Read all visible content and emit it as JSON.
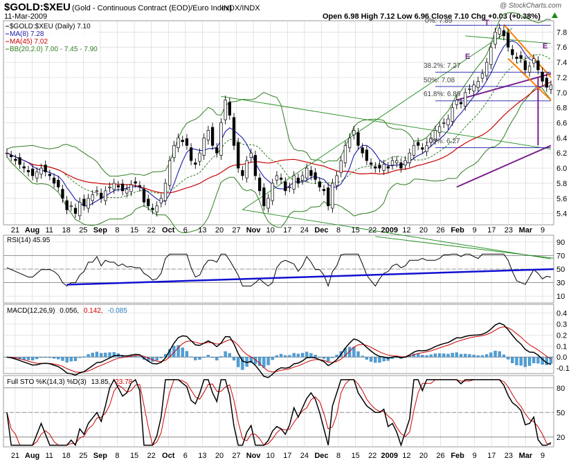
{
  "header": {
    "symbol_title": "$GOLD:$XEU",
    "description": "(Gold - Continuous Contract (EOD)/Euro Index)",
    "exchange": "INDX/INDX",
    "watermark": "@ StockCharts.com",
    "date": "11-Mar-2009",
    "ohlc": "Open 6.98  High 7.12  Low 6.96  Close 7.10  Chg +0.03 (+0.38%)",
    "chg_icon": "triangle-up-icon"
  },
  "legend": {
    "price": "$GOLD:$XEU (Daily) 7.10",
    "ma8": "MA(8) 7.28",
    "ma45": "MA(45) 7.02",
    "bb": "BB(20,2.0) 7.00 - 7.45 - 7.90",
    "rsi": "RSI(14) 45.95",
    "macd_label": "MACD(12,26,9)",
    "macd_v1": "0.056,",
    "macd_v2": "0.142,",
    "macd_v3": "-0.085",
    "sto_label": "Full STO %K(14,3) %D(3)",
    "sto_v1": "13.85,",
    "sto_v2": "23.78"
  },
  "colors": {
    "price": "#000000",
    "ma8": "#1a1aa8",
    "ma45": "#cc0000",
    "bb": "#2e7d1f",
    "channel_green": "#1a8a1a",
    "channel_purple": "#7a1f8c",
    "orange": "#ff8000",
    "blue_trend": "#1010d0",
    "hist": "#4f9fd6"
  },
  "x_axis_labels": [
    "21",
    "Aug",
    "11",
    "18",
    "25",
    "Sep",
    "8",
    "15",
    "22",
    "Oct",
    "6",
    "13",
    "20",
    "27",
    "Nov",
    "10",
    "17",
    "24",
    "Dec",
    "8",
    "15",
    "22",
    "2009",
    "12",
    "20",
    "26",
    "Feb",
    "9",
    "17",
    "23",
    "Mar",
    "9"
  ],
  "annotations": {
    "wave_labels": [
      "T",
      "E",
      "E"
    ],
    "fib_labels": [
      "0%: 7.89",
      "38.2%: 7.27",
      "50%: 7.08",
      "61.8%: 6.89",
      "100%: 6.27"
    ]
  },
  "chart_data": [
    {
      "type": "candlestick",
      "panel": "price",
      "yticks": [
        5.4,
        5.6,
        5.8,
        6.0,
        6.2,
        6.4,
        6.6,
        6.8,
        7.0,
        7.2,
        7.4,
        7.6,
        7.8
      ],
      "ylim": [
        5.25,
        7.95
      ],
      "close": [
        6.2,
        6.15,
        6.1,
        6.05,
        6.0,
        5.95,
        5.9,
        5.95,
        6.0,
        5.95,
        5.9,
        5.8,
        5.75,
        5.6,
        5.45,
        5.5,
        5.4,
        5.55,
        5.5,
        5.6,
        5.65,
        5.7,
        5.6,
        5.7,
        5.75,
        5.8,
        5.75,
        5.7,
        5.72,
        5.78,
        5.8,
        5.75,
        5.55,
        5.5,
        5.45,
        5.5,
        5.6,
        5.8,
        6.1,
        6.3,
        6.4,
        6.35,
        6.3,
        6.1,
        6.05,
        6.2,
        6.4,
        6.5,
        6.3,
        6.2,
        6.6,
        6.9,
        6.7,
        6.3,
        6.0,
        5.9,
        6.1,
        6.2,
        5.9,
        5.7,
        5.5,
        5.6,
        5.8,
        5.9,
        5.85,
        5.7,
        5.75,
        5.9,
        5.8,
        5.9,
        6.0,
        5.9,
        5.85,
        5.75,
        5.7,
        5.5,
        5.8,
        5.9,
        6.1,
        6.3,
        6.4,
        6.5,
        6.3,
        6.2,
        6.1,
        6.05,
        6.0,
        6.0,
        6.05,
        6.0,
        6.1,
        6.1,
        6.0,
        6.1,
        6.2,
        6.3,
        6.3,
        6.25,
        6.3,
        6.4,
        6.5,
        6.55,
        6.6,
        6.65,
        6.8,
        6.9,
        6.85,
        7.0,
        7.05,
        7.1,
        7.15,
        7.25,
        7.4,
        7.6,
        7.8,
        7.85,
        7.75,
        7.6,
        7.5,
        7.45,
        7.45,
        7.3,
        7.35,
        7.45,
        7.3,
        7.15,
        7.07,
        7.1
      ]
    },
    {
      "type": "line",
      "panel": "rsi",
      "yticks": [
        10,
        30,
        50,
        70,
        90
      ],
      "ylim": [
        0,
        100
      ],
      "reference_lines": [
        30,
        50,
        70
      ]
    },
    {
      "type": "bar+line",
      "panel": "macd",
      "yticks": [
        -0.1,
        0.0,
        0.1,
        0.2,
        0.3,
        0.4
      ],
      "ylim": [
        -0.15,
        0.48
      ]
    },
    {
      "type": "line",
      "panel": "stochastic",
      "yticks": [
        20,
        50,
        80
      ],
      "ylim": [
        8,
        95
      ],
      "reference_lines": [
        20,
        50,
        80
      ]
    }
  ]
}
